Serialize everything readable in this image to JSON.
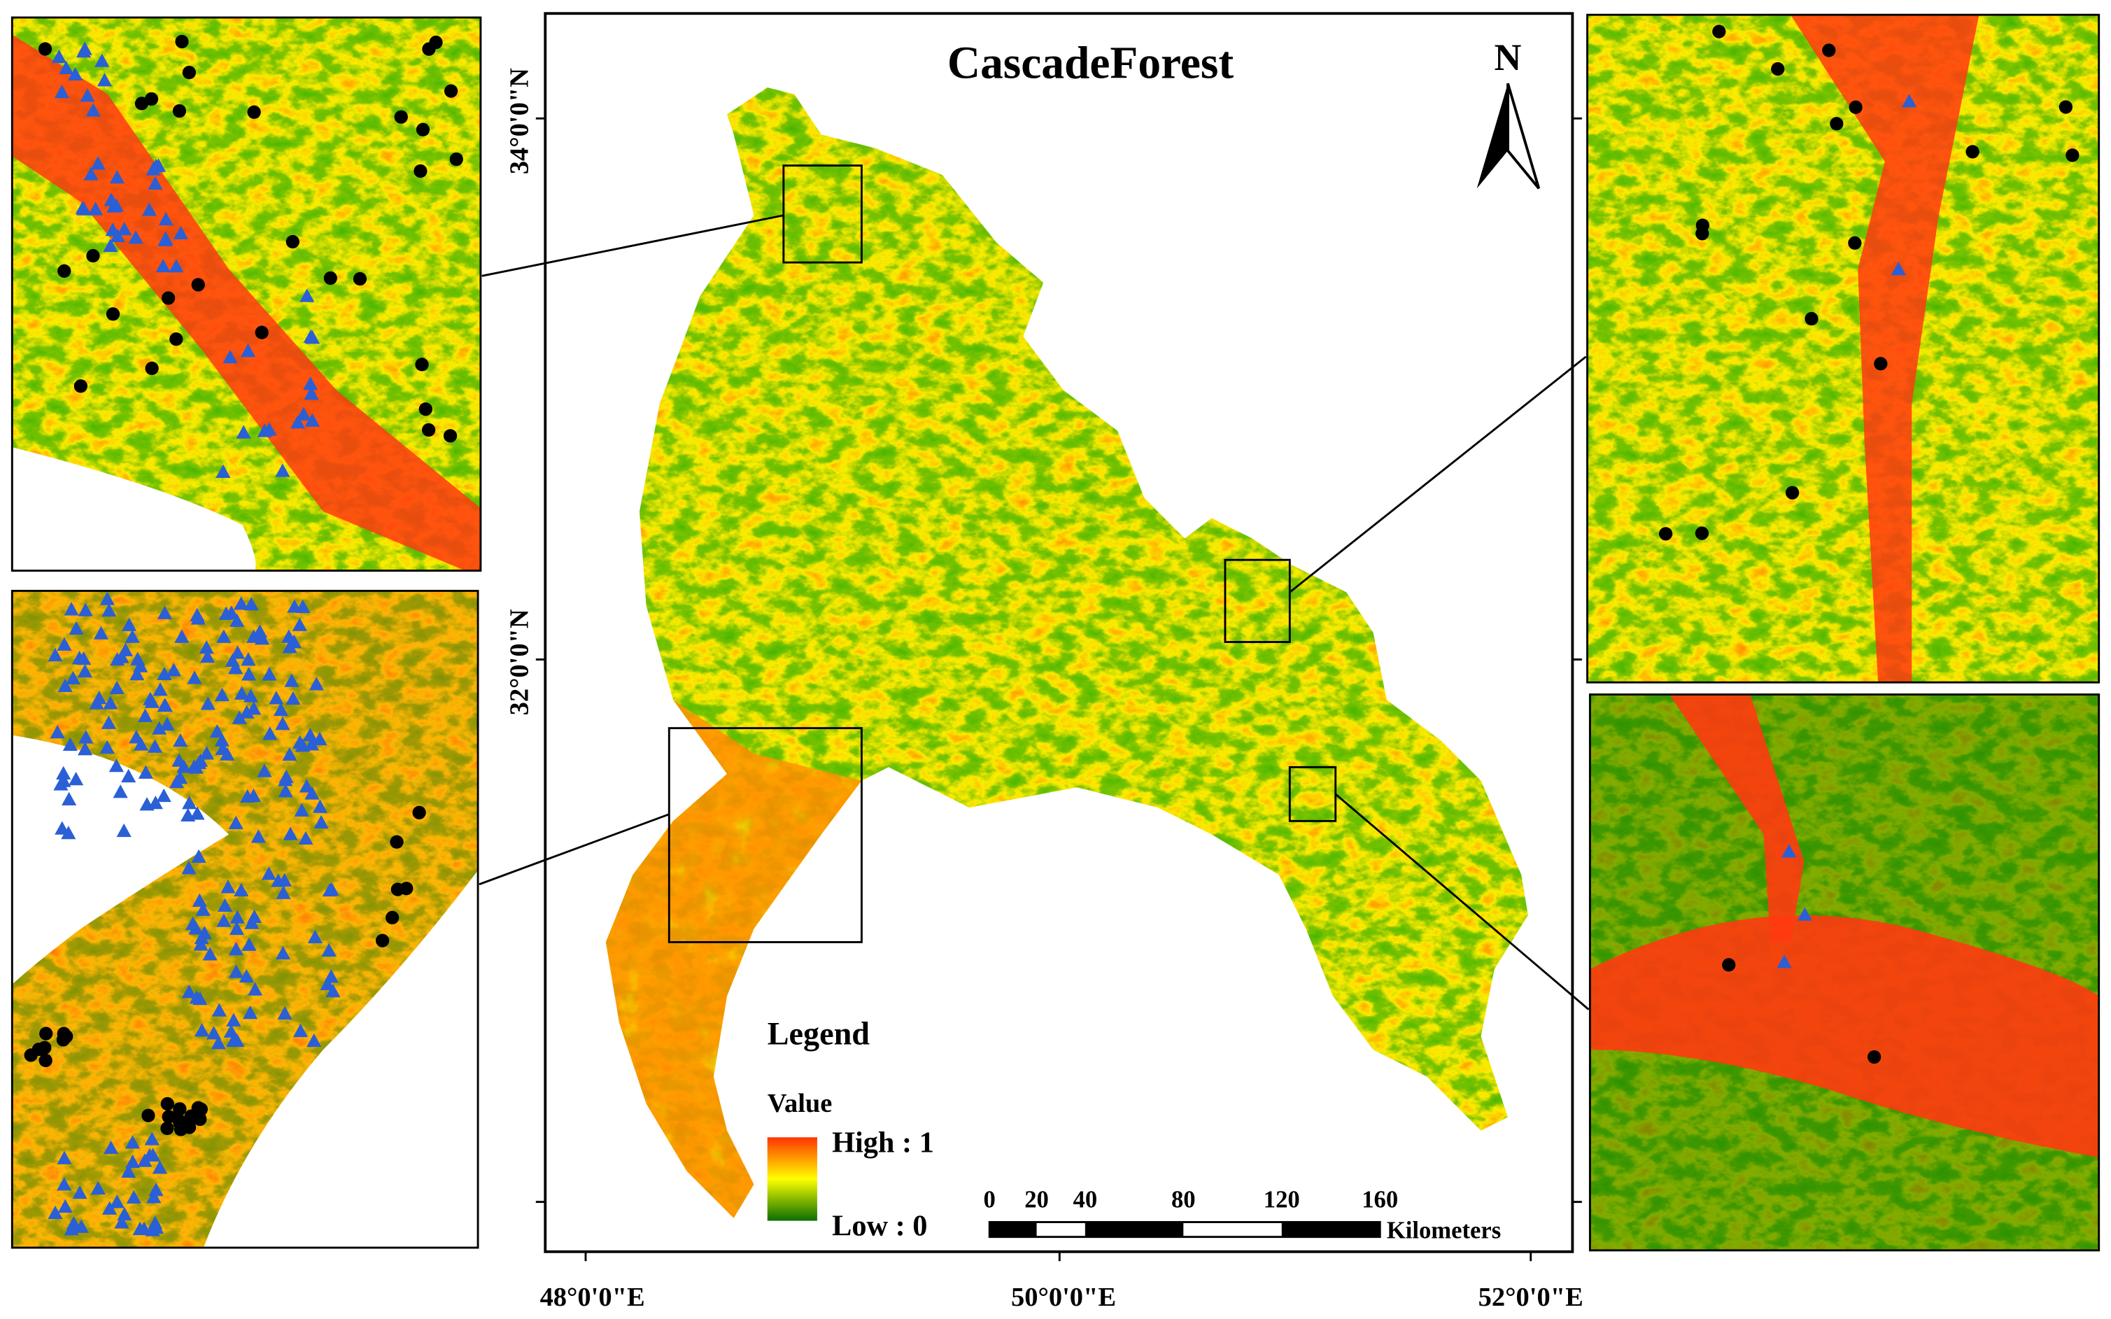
{
  "map": {
    "title": "CascadeForest",
    "north": "N",
    "latitude_labels": [
      "34°0'0\"N",
      "32°0'0\"N"
    ],
    "longitude_labels": [
      "48°0'0\"E",
      "50°0'0\"E",
      "52°0'0\"E"
    ],
    "legend": {
      "heading": "Legend",
      "field": "Value",
      "high": "High : 1",
      "low": "Low : 0"
    },
    "scale_bar": {
      "ticks": [
        "0",
        "20",
        "40",
        "80",
        "120",
        "160"
      ],
      "unit": "Kilometers"
    }
  }
}
